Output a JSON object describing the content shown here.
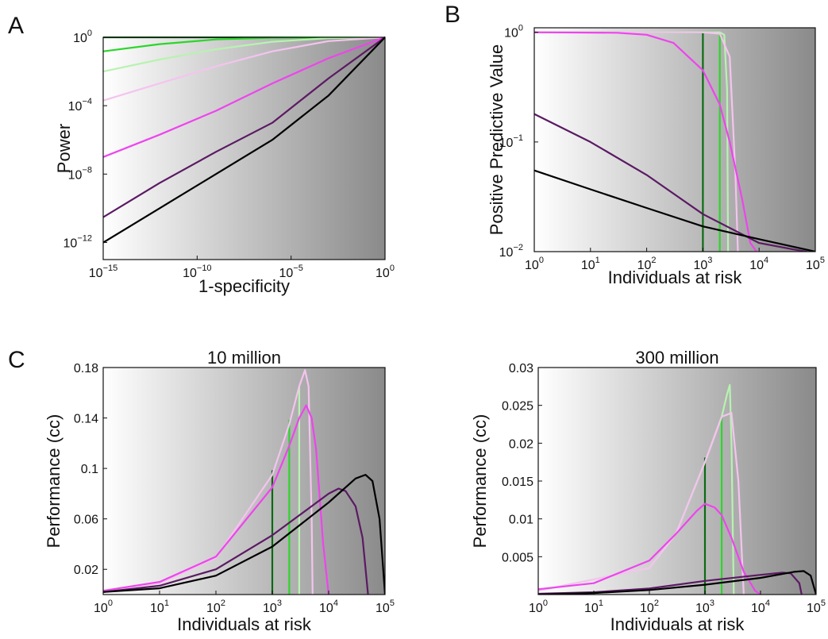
{
  "colors": {
    "dark_green": "#0b6a12",
    "green": "#2bd62b",
    "light_green": "#b8f2b0",
    "light_pink": "#f4c4ee",
    "magenta": "#ee44ee",
    "purple": "#5b1a63",
    "black": "#000000",
    "background_gradient": [
      "#ffffff",
      "#8a8a8a"
    ]
  },
  "chart_data": [
    {
      "panel": "A",
      "type": "line",
      "title": "",
      "xlabel": "1-specificity",
      "ylabel": "Power",
      "x_scale": "log",
      "y_scale": "log",
      "xlim": [
        1e-15,
        1
      ],
      "ylim": [
        1e-13,
        1
      ],
      "x_ticks": [
        {
          "base": "10",
          "exp": "−15"
        },
        {
          "base": "10",
          "exp": "−10"
        },
        {
          "base": "10",
          "exp": "−5"
        },
        {
          "base": "10",
          "exp": "0"
        }
      ],
      "y_ticks": [
        {
          "base": "10",
          "exp": "−12"
        },
        {
          "base": "10",
          "exp": "−8"
        },
        {
          "base": "10",
          "exp": "−4"
        },
        {
          "base": "10",
          "exp": "0"
        }
      ],
      "grid": false,
      "series": [
        {
          "color": "dark_green",
          "x": [
            1e-15,
            1
          ],
          "y": [
            1,
            1
          ]
        },
        {
          "color": "green",
          "x": [
            1e-15,
            1e-12,
            1e-09,
            1e-06,
            0.001,
            1
          ],
          "y": [
            0.15,
            0.4,
            0.75,
            0.95,
            0.99,
            1
          ]
        },
        {
          "color": "light_green",
          "x": [
            1e-15,
            1e-12,
            1e-09,
            1e-06,
            0.001,
            1
          ],
          "y": [
            0.01,
            0.05,
            0.2,
            0.55,
            0.9,
            1
          ]
        },
        {
          "color": "light_pink",
          "x": [
            1e-15,
            1e-12,
            1e-09,
            1e-06,
            0.001,
            1
          ],
          "y": [
            0.0002,
            0.002,
            0.02,
            0.15,
            0.6,
            1
          ]
        },
        {
          "color": "magenta",
          "x": [
            1e-15,
            1e-12,
            1e-09,
            1e-06,
            0.001,
            1
          ],
          "y": [
            1e-07,
            2e-06,
            5e-05,
            0.002,
            0.06,
            1
          ]
        },
        {
          "color": "purple",
          "x": [
            1e-15,
            1e-12,
            1e-09,
            1e-06,
            0.001,
            1
          ],
          "y": [
            3e-11,
            3e-09,
            2e-07,
            1e-05,
            0.004,
            1
          ]
        },
        {
          "color": "black",
          "x": [
            1e-15,
            1e-12,
            1e-09,
            1e-06,
            0.001,
            1
          ],
          "y": [
            1e-12,
            1e-10,
            1e-08,
            1e-06,
            0.0004,
            1
          ]
        }
      ]
    },
    {
      "panel": "B",
      "type": "line",
      "title": "",
      "xlabel": "Individuals at risk",
      "ylabel": "Positive Predictive Value",
      "x_scale": "log",
      "y_scale": "log",
      "xlim": [
        1,
        100000
      ],
      "ylim": [
        0.01,
        1.1
      ],
      "x_ticks": [
        {
          "base": "10",
          "exp": "0"
        },
        {
          "base": "10",
          "exp": "1"
        },
        {
          "base": "10",
          "exp": "2"
        },
        {
          "base": "10",
          "exp": "3"
        },
        {
          "base": "10",
          "exp": "4"
        },
        {
          "base": "10",
          "exp": "5"
        }
      ],
      "y_ticks": [
        {
          "base": "10",
          "exp": "−2"
        },
        {
          "base": "10",
          "exp": "−1"
        },
        {
          "base": "10",
          "exp": "0"
        }
      ],
      "grid": false,
      "series": [
        {
          "color": "dark_green",
          "x": [
            1,
            1000,
            1000
          ],
          "y": [
            1,
            1,
            0.01
          ]
        },
        {
          "color": "green",
          "x": [
            1,
            1800,
            2000,
            2000
          ],
          "y": [
            1,
            1,
            0.98,
            0.01
          ]
        },
        {
          "color": "light_green",
          "x": [
            1,
            2000,
            2400,
            2700,
            2800
          ],
          "y": [
            1,
            1,
            0.95,
            0.3,
            0.01
          ]
        },
        {
          "color": "light_pink",
          "x": [
            1,
            1000,
            2000,
            3000,
            3800,
            4200
          ],
          "y": [
            1,
            1,
            0.97,
            0.6,
            0.05,
            0.01
          ]
        },
        {
          "color": "magenta",
          "x": [
            1,
            30,
            100,
            300,
            1000,
            2000,
            3000,
            5000,
            7000,
            9000
          ],
          "y": [
            1,
            0.99,
            0.95,
            0.8,
            0.45,
            0.22,
            0.1,
            0.03,
            0.012,
            0.01
          ]
        },
        {
          "color": "purple",
          "x": [
            1,
            10,
            100,
            1000,
            10000,
            40000,
            70000
          ],
          "y": [
            0.18,
            0.1,
            0.05,
            0.022,
            0.012,
            0.0105,
            0.01
          ]
        },
        {
          "color": "black",
          "x": [
            1,
            10,
            100,
            1000,
            10000,
            100000
          ],
          "y": [
            0.055,
            0.037,
            0.025,
            0.017,
            0.013,
            0.01
          ]
        }
      ]
    },
    {
      "panel": "C",
      "type": "line",
      "title": "10 million",
      "xlabel": "Individuals at risk",
      "ylabel": "Performance (cc)",
      "x_scale": "log",
      "y_scale": "linear",
      "xlim": [
        1,
        100000
      ],
      "ylim": [
        0,
        0.18
      ],
      "x_ticks": [
        {
          "base": "10",
          "exp": "0"
        },
        {
          "base": "10",
          "exp": "1"
        },
        {
          "base": "10",
          "exp": "2"
        },
        {
          "base": "10",
          "exp": "3"
        },
        {
          "base": "10",
          "exp": "4"
        },
        {
          "base": "10",
          "exp": "5"
        }
      ],
      "y_ticks": [
        {
          "v": 0.02,
          "label": "0.02"
        },
        {
          "v": 0.06,
          "label": "0.06"
        },
        {
          "v": 0.1,
          "label": "0.1"
        },
        {
          "v": 0.14,
          "label": "0.14"
        },
        {
          "v": 0.18,
          "label": "0.18"
        }
      ],
      "grid": false,
      "series": [
        {
          "color": "dark_green",
          "x": [
            1000,
            1000
          ],
          "y": [
            0.098,
            0
          ]
        },
        {
          "color": "green",
          "x": [
            2000,
            2000
          ],
          "y": [
            0.138,
            0
          ]
        },
        {
          "color": "light_green",
          "x": [
            3000,
            3000
          ],
          "y": [
            0.165,
            0
          ]
        },
        {
          "color": "light_pink",
          "x": [
            1,
            10,
            100,
            1000,
            2000,
            3000,
            3800,
            4400,
            5000,
            5200
          ],
          "y": [
            0.003,
            0.009,
            0.029,
            0.095,
            0.135,
            0.165,
            0.178,
            0.165,
            0.06,
            0
          ]
        },
        {
          "color": "magenta",
          "x": [
            1,
            10,
            100,
            1000,
            2000,
            3000,
            4000,
            5000,
            6000,
            8000,
            10000
          ],
          "y": [
            0.003,
            0.01,
            0.03,
            0.085,
            0.118,
            0.14,
            0.15,
            0.14,
            0.115,
            0.04,
            0
          ]
        },
        {
          "color": "purple",
          "x": [
            1,
            10,
            100,
            1000,
            10000,
            15000,
            20000,
            30000,
            40000,
            50000
          ],
          "y": [
            0.002,
            0.007,
            0.02,
            0.047,
            0.08,
            0.084,
            0.082,
            0.07,
            0.045,
            0
          ]
        },
        {
          "color": "black",
          "x": [
            1,
            10,
            100,
            1000,
            10000,
            30000,
            45000,
            60000,
            80000,
            100000
          ],
          "y": [
            0.002,
            0.005,
            0.015,
            0.038,
            0.073,
            0.092,
            0.095,
            0.09,
            0.06,
            0
          ]
        }
      ]
    },
    {
      "panel": "C",
      "type": "line",
      "title": "300 million",
      "xlabel": "Individuals at risk",
      "ylabel": "Performance (cc)",
      "x_scale": "log",
      "y_scale": "linear",
      "xlim": [
        1,
        100000
      ],
      "ylim": [
        0,
        0.03
      ],
      "x_ticks": [
        {
          "base": "10",
          "exp": "0"
        },
        {
          "base": "10",
          "exp": "1"
        },
        {
          "base": "10",
          "exp": "2"
        },
        {
          "base": "10",
          "exp": "3"
        },
        {
          "base": "10",
          "exp": "4"
        },
        {
          "base": "10",
          "exp": "5"
        }
      ],
      "y_ticks": [
        {
          "v": 0.005,
          "label": "0.005"
        },
        {
          "v": 0.01,
          "label": "0.01"
        },
        {
          "v": 0.015,
          "label": "0.015"
        },
        {
          "v": 0.02,
          "label": "0.02"
        },
        {
          "v": 0.025,
          "label": "0.025"
        },
        {
          "v": 0.03,
          "label": "0.03"
        }
      ],
      "grid": false,
      "series": [
        {
          "color": "dark_green",
          "x": [
            1000,
            1000
          ],
          "y": [
            0.018,
            0
          ]
        },
        {
          "color": "green",
          "x": [
            2000,
            2000
          ],
          "y": [
            0.0235,
            0
          ]
        },
        {
          "color": "light_green",
          "x": [
            1,
            100,
            300,
            1000,
            2000,
            2500,
            2800,
            3000,
            3300
          ],
          "y": [
            0.0005,
            0.0035,
            0.008,
            0.0175,
            0.0235,
            0.0265,
            0.0277,
            0.02,
            0
          ]
        },
        {
          "color": "light_pink",
          "x": [
            1,
            100,
            300,
            1000,
            2000,
            3000,
            4000,
            5000
          ],
          "y": [
            0.0005,
            0.0035,
            0.008,
            0.0175,
            0.0235,
            0.024,
            0.015,
            0
          ]
        },
        {
          "color": "magenta",
          "x": [
            1,
            10,
            100,
            300,
            700,
            1000,
            1500,
            2000,
            3000,
            5000,
            8000,
            10000
          ],
          "y": [
            0.0007,
            0.0015,
            0.0045,
            0.008,
            0.011,
            0.012,
            0.0115,
            0.0105,
            0.0075,
            0.003,
            0.0005,
            0
          ]
        },
        {
          "color": "purple",
          "x": [
            1,
            10,
            100,
            1000,
            10000,
            25000,
            35000,
            50000,
            55000
          ],
          "y": [
            0.0001,
            0.0003,
            0.0008,
            0.0018,
            0.0026,
            0.0029,
            0.0028,
            0.0015,
            0
          ]
        },
        {
          "color": "black",
          "x": [
            1,
            10,
            100,
            1000,
            10000,
            40000,
            60000,
            80000,
            100000
          ],
          "y": [
            0,
            0.0002,
            0.0006,
            0.0013,
            0.0022,
            0.003,
            0.0031,
            0.0025,
            0
          ]
        }
      ]
    }
  ]
}
